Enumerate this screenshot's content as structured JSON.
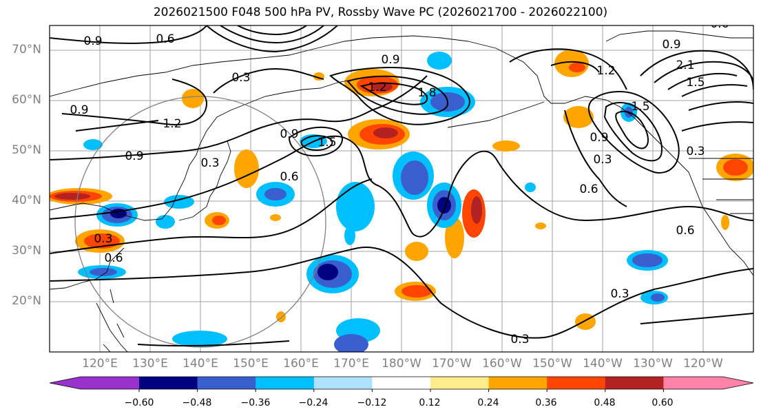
{
  "title": "2026021500 F048 500 hPa PV, Rossby Wave PC (2026021700 - 2026022100)",
  "lat_labels": [
    "70°N",
    "60°N",
    "50°N",
    "40°N",
    "30°N",
    "20°N"
  ],
  "lon_labels": [
    "120°E",
    "130°E",
    "140°E",
    "150°E",
    "160°E",
    "170°E",
    "180°W",
    "170°W",
    "160°W",
    "150°W",
    "140°W",
    "130°W",
    "120°W"
  ],
  "colorbar": {
    "ticks": [
      "−0.60",
      "−0.48",
      "−0.36",
      "−0.24",
      "−0.12",
      "0.12",
      "0.24",
      "0.36",
      "0.48",
      "0.60"
    ],
    "colors": [
      "#9932cc",
      "#000080",
      "#3a5fcd",
      "#00bfff",
      "#b0e2ff",
      "#ffffff",
      "#ffec8b",
      "#ffa500",
      "#ff4500",
      "#b22222",
      "#ff82ab"
    ]
  },
  "contour_labels": [
    "0.9",
    "0.6",
    "0.3",
    "0.9",
    "1.2",
    "0.9",
    "0.3",
    "0.6",
    "0.9",
    "1.5",
    "0.9",
    "1.2",
    "1.8",
    "0.9",
    "0.6",
    "0.3",
    "1.2",
    "1.5",
    "0.6",
    "0.3",
    "0.3",
    "0.3",
    "0.6",
    "0.3",
    "2.1",
    "1.5",
    "0.9",
    "0.6"
  ],
  "colors": {
    "coast": "#000000",
    "grid": "#a0a0a0",
    "circle": "#808080"
  }
}
